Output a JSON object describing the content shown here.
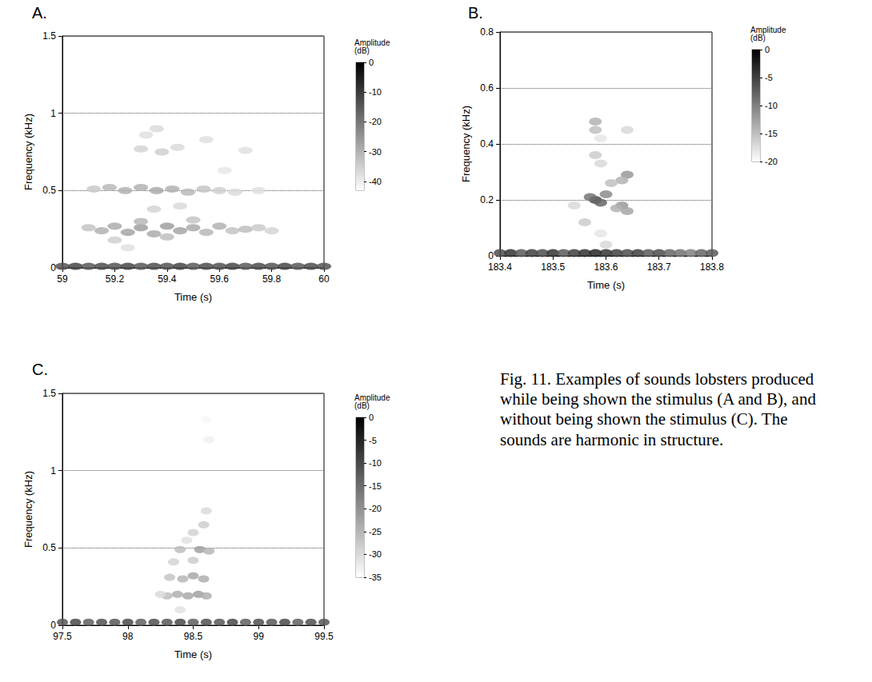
{
  "chart_data": [
    {
      "type": "heatmap",
      "panel": "A.",
      "x_label": "Time (s)",
      "y_label": "Frequency (kHz)",
      "xlim": [
        59,
        60
      ],
      "xticks": [
        59,
        59.2,
        59.4,
        59.6,
        59.8,
        60
      ],
      "ylim": [
        0,
        1.5
      ],
      "yticks": [
        0,
        0.5,
        1,
        1.5
      ],
      "grid": true,
      "cells": [
        [
          59.0,
          0.01,
          -14
        ],
        [
          59.05,
          0.01,
          -12
        ],
        [
          59.1,
          0.01,
          -15
        ],
        [
          59.15,
          0.01,
          -13
        ],
        [
          59.2,
          0.01,
          -14
        ],
        [
          59.25,
          0.01,
          -12
        ],
        [
          59.3,
          0.01,
          -15
        ],
        [
          59.35,
          0.01,
          -13
        ],
        [
          59.4,
          0.01,
          -14
        ],
        [
          59.45,
          0.01,
          -12
        ],
        [
          59.5,
          0.01,
          -15
        ],
        [
          59.55,
          0.01,
          -13
        ],
        [
          59.6,
          0.01,
          -14
        ],
        [
          59.65,
          0.01,
          -12
        ],
        [
          59.7,
          0.01,
          -15
        ],
        [
          59.75,
          0.01,
          -13
        ],
        [
          59.8,
          0.01,
          -14
        ],
        [
          59.85,
          0.01,
          -12
        ],
        [
          59.9,
          0.01,
          -15
        ],
        [
          59.95,
          0.01,
          -13
        ],
        [
          60.0,
          0.01,
          -14
        ],
        [
          59.1,
          0.26,
          -33
        ],
        [
          59.15,
          0.24,
          -30
        ],
        [
          59.2,
          0.27,
          -29
        ],
        [
          59.25,
          0.23,
          -28
        ],
        [
          59.3,
          0.26,
          -27
        ],
        [
          59.35,
          0.22,
          -29
        ],
        [
          59.4,
          0.27,
          -27
        ],
        [
          59.45,
          0.24,
          -28
        ],
        [
          59.5,
          0.26,
          -29
        ],
        [
          59.55,
          0.23,
          -31
        ],
        [
          59.6,
          0.27,
          -30
        ],
        [
          59.65,
          0.24,
          -33
        ],
        [
          59.7,
          0.25,
          -32
        ],
        [
          59.75,
          0.26,
          -34
        ],
        [
          59.8,
          0.24,
          -36
        ],
        [
          59.3,
          0.3,
          -31
        ],
        [
          59.4,
          0.2,
          -32
        ],
        [
          59.2,
          0.18,
          -35
        ],
        [
          59.5,
          0.31,
          -33
        ],
        [
          59.12,
          0.51,
          -34
        ],
        [
          59.18,
          0.52,
          -31
        ],
        [
          59.24,
          0.5,
          -30
        ],
        [
          59.3,
          0.52,
          -30
        ],
        [
          59.36,
          0.5,
          -29
        ],
        [
          59.42,
          0.51,
          -30
        ],
        [
          59.48,
          0.49,
          -31
        ],
        [
          59.54,
          0.51,
          -33
        ],
        [
          59.6,
          0.5,
          -35
        ],
        [
          59.66,
          0.49,
          -37
        ],
        [
          59.75,
          0.5,
          -38
        ],
        [
          59.3,
          0.77,
          -36
        ],
        [
          59.38,
          0.75,
          -35
        ],
        [
          59.44,
          0.78,
          -37
        ],
        [
          59.36,
          0.9,
          -37
        ],
        [
          59.32,
          0.86,
          -38
        ],
        [
          59.55,
          0.83,
          -38
        ],
        [
          59.7,
          0.76,
          -38
        ],
        [
          59.35,
          0.38,
          -36
        ],
        [
          59.45,
          0.4,
          -37
        ],
        [
          59.25,
          0.13,
          -38
        ],
        [
          59.62,
          0.63,
          -39
        ]
      ],
      "colorbar": {
        "title": "Amplitude (dB)",
        "range": [
          -43,
          0
        ],
        "ticks": [
          0,
          -10,
          -20,
          -30,
          -40
        ]
      }
    },
    {
      "type": "heatmap",
      "panel": "B.",
      "x_label": "Time (s)",
      "y_label": "Frequency (kHz)",
      "xlim": [
        183.4,
        183.8
      ],
      "xticks": [
        183.4,
        183.5,
        183.6,
        183.7,
        183.8
      ],
      "ylim": [
        0,
        0.8
      ],
      "yticks": [
        0,
        0.2,
        0.4,
        0.6,
        0.8
      ],
      "grid": true,
      "cells": [
        [
          183.4,
          0.01,
          -6
        ],
        [
          183.42,
          0.01,
          -4
        ],
        [
          183.44,
          0.01,
          -7
        ],
        [
          183.46,
          0.01,
          -5
        ],
        [
          183.48,
          0.01,
          -6
        ],
        [
          183.5,
          0.01,
          -4
        ],
        [
          183.52,
          0.01,
          -7
        ],
        [
          183.54,
          0.01,
          -5
        ],
        [
          183.56,
          0.01,
          -4
        ],
        [
          183.58,
          0.01,
          -3
        ],
        [
          183.6,
          0.01,
          -4
        ],
        [
          183.62,
          0.01,
          -5
        ],
        [
          183.64,
          0.01,
          -6
        ],
        [
          183.66,
          0.01,
          -5
        ],
        [
          183.68,
          0.01,
          -7
        ],
        [
          183.7,
          0.01,
          -6
        ],
        [
          183.72,
          0.01,
          -8
        ],
        [
          183.74,
          0.01,
          -9
        ],
        [
          183.76,
          0.01,
          -10
        ],
        [
          183.78,
          0.01,
          -8
        ],
        [
          183.8,
          0.01,
          -7
        ],
        [
          183.58,
          0.2,
          -6
        ],
        [
          183.59,
          0.19,
          -8
        ],
        [
          183.57,
          0.21,
          -9
        ],
        [
          183.6,
          0.22,
          -11
        ],
        [
          183.63,
          0.18,
          -12
        ],
        [
          183.64,
          0.16,
          -13
        ],
        [
          183.62,
          0.17,
          -14
        ],
        [
          183.54,
          0.18,
          -17
        ],
        [
          183.56,
          0.12,
          -16
        ],
        [
          183.59,
          0.08,
          -18
        ],
        [
          183.6,
          0.04,
          -17
        ],
        [
          183.58,
          0.36,
          -16
        ],
        [
          183.59,
          0.33,
          -17
        ],
        [
          183.64,
          0.29,
          -12
        ],
        [
          183.63,
          0.27,
          -14
        ],
        [
          183.61,
          0.26,
          -15
        ],
        [
          183.58,
          0.48,
          -14
        ],
        [
          183.58,
          0.45,
          -15
        ],
        [
          183.64,
          0.45,
          -17
        ],
        [
          183.59,
          0.42,
          -18
        ]
      ],
      "colorbar": {
        "title": "Amplitude (dB)",
        "range": [
          -20,
          0
        ],
        "ticks": [
          0,
          -5,
          -10,
          -15,
          -20
        ]
      }
    },
    {
      "type": "heatmap",
      "panel": "C.",
      "x_label": "Time (s)",
      "y_label": "Frequency (kHz)",
      "xlim": [
        97.5,
        99.5
      ],
      "xticks": [
        97.5,
        98,
        98.5,
        99,
        99.5
      ],
      "ylim": [
        0,
        1.5
      ],
      "yticks": [
        0,
        0.5,
        1,
        1.5
      ],
      "grid": true,
      "cells": [
        [
          97.5,
          0.02,
          -12
        ],
        [
          97.6,
          0.02,
          -10
        ],
        [
          97.7,
          0.02,
          -13
        ],
        [
          97.8,
          0.02,
          -11
        ],
        [
          97.9,
          0.02,
          -12
        ],
        [
          98.0,
          0.02,
          -10
        ],
        [
          98.1,
          0.02,
          -13
        ],
        [
          98.2,
          0.02,
          -11
        ],
        [
          98.3,
          0.02,
          -12
        ],
        [
          98.4,
          0.02,
          -10
        ],
        [
          98.5,
          0.02,
          -13
        ],
        [
          98.6,
          0.02,
          -11
        ],
        [
          98.7,
          0.02,
          -12
        ],
        [
          98.8,
          0.02,
          -10
        ],
        [
          98.9,
          0.02,
          -13
        ],
        [
          99.0,
          0.02,
          -11
        ],
        [
          99.1,
          0.02,
          -12
        ],
        [
          99.2,
          0.02,
          -10
        ],
        [
          99.3,
          0.02,
          -13
        ],
        [
          99.4,
          0.02,
          -11
        ],
        [
          99.5,
          0.02,
          -12
        ],
        [
          98.3,
          0.19,
          -26
        ],
        [
          98.38,
          0.2,
          -24
        ],
        [
          98.46,
          0.19,
          -23
        ],
        [
          98.54,
          0.2,
          -22
        ],
        [
          98.6,
          0.19,
          -24
        ],
        [
          98.32,
          0.31,
          -27
        ],
        [
          98.42,
          0.3,
          -25
        ],
        [
          98.5,
          0.32,
          -23
        ],
        [
          98.58,
          0.3,
          -24
        ],
        [
          98.35,
          0.41,
          -29
        ],
        [
          98.5,
          0.42,
          -28
        ],
        [
          98.4,
          0.49,
          -26
        ],
        [
          98.55,
          0.49,
          -22
        ],
        [
          98.62,
          0.48,
          -25
        ],
        [
          98.5,
          0.6,
          -29
        ],
        [
          98.58,
          0.65,
          -28
        ],
        [
          98.6,
          0.74,
          -30
        ],
        [
          98.45,
          0.55,
          -31
        ],
        [
          98.4,
          0.1,
          -31
        ],
        [
          98.62,
          1.2,
          -33
        ],
        [
          98.6,
          1.33,
          -34
        ],
        [
          98.25,
          0.2,
          -30
        ]
      ],
      "colorbar": {
        "title": "Amplitude (dB)",
        "range": [
          -35,
          0
        ],
        "ticks": [
          0,
          -5,
          -10,
          -15,
          -20,
          -25,
          -30,
          -35
        ]
      }
    }
  ],
  "caption": "Fig. 11. Examples of sounds lobsters produced while being shown the stimulus (A and B), and without being shown the stimulus (C). The sounds are harmonic in structure."
}
